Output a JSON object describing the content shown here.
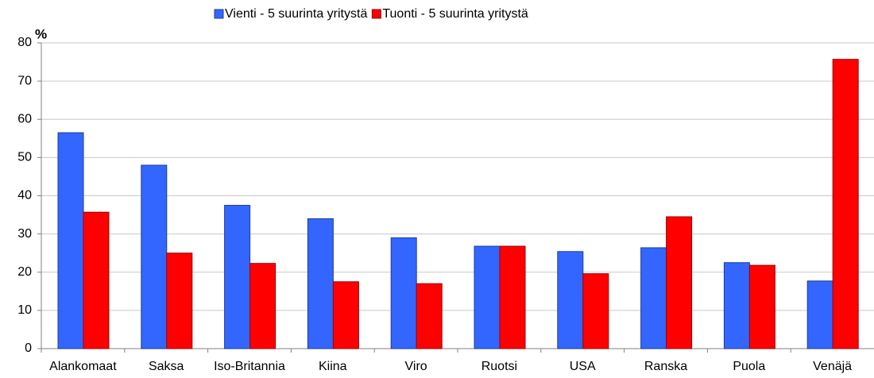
{
  "chart_data": {
    "type": "bar",
    "y_label": "%",
    "categories": [
      "Alankomaat",
      "Saksa",
      "Iso-Britannia",
      "Kiina",
      "Viro",
      "Ruotsi",
      "USA",
      "Ranska",
      "Puola",
      "Venäjä"
    ],
    "series": [
      {
        "name": "Vienti - 5 suurinta yritystä",
        "color": "#3366ff",
        "values": [
          56.5,
          48,
          37.5,
          34,
          29,
          26.8,
          25.4,
          26.4,
          22.5,
          17.7
        ]
      },
      {
        "name": "Tuonti - 5 suurinta yritystä",
        "color": "#ff0000",
        "values": [
          35.7,
          25,
          22.3,
          17.5,
          17,
          26.8,
          19.6,
          34.5,
          21.8,
          75.7
        ]
      }
    ],
    "ylim": [
      0,
      80
    ],
    "yticks": [
      0,
      10,
      20,
      30,
      40,
      50,
      60,
      70,
      80
    ],
    "grid": true,
    "legend": "top"
  }
}
